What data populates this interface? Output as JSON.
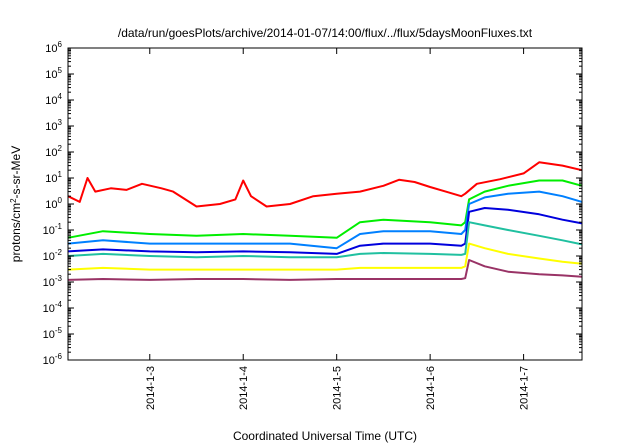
{
  "chart_data": {
    "type": "line",
    "title": "/data/run/goesPlots/archive/2014-01-07/14:00/flux/../flux/5daysMoonFluxes.txt",
    "xlabel": "Coordinated Universal Time (UTC)",
    "ylabel": {
      "pre": "protons/cm",
      "sup": "2",
      "post": "-s-sr-MeV"
    },
    "y_scale": "log",
    "ylim": [
      1e-06,
      1000000.0
    ],
    "y_ticks": [
      {
        "value": 1e-06,
        "base": "10",
        "exp": "-6"
      },
      {
        "value": 1e-05,
        "base": "10",
        "exp": "-5"
      },
      {
        "value": 0.0001,
        "base": "10",
        "exp": "-4"
      },
      {
        "value": 0.001,
        "base": "10",
        "exp": "-3"
      },
      {
        "value": 0.01,
        "base": "10",
        "exp": "-2"
      },
      {
        "value": 0.1,
        "base": "10",
        "exp": "-1"
      },
      {
        "value": 1,
        "base": "10",
        "exp": "0"
      },
      {
        "value": 10,
        "base": "10",
        "exp": "1"
      },
      {
        "value": 100,
        "base": "10",
        "exp": "2"
      },
      {
        "value": 1000,
        "base": "10",
        "exp": "3"
      },
      {
        "value": 10000,
        "base": "10",
        "exp": "4"
      },
      {
        "value": 100000,
        "base": "10",
        "exp": "5"
      },
      {
        "value": 1000000,
        "base": "10",
        "exp": "6"
      }
    ],
    "xlim": [
      "2014-01-02T03:00",
      "2014-01-07T15:00"
    ],
    "x_ticks": [
      "2014-1-3",
      "2014-1-4",
      "2014-1-5",
      "2014-1-6",
      "2014-1-7"
    ],
    "grid": false,
    "series": [
      {
        "color": "#ff0000",
        "points": [
          [
            "2014-01-02T03:00",
            2.0
          ],
          [
            "2014-01-02T06:00",
            1.2
          ],
          [
            "2014-01-02T08:00",
            10.0
          ],
          [
            "2014-01-02T10:00",
            3.0
          ],
          [
            "2014-01-02T14:00",
            4.0
          ],
          [
            "2014-01-02T18:00",
            3.5
          ],
          [
            "2014-01-02T22:00",
            6.0
          ],
          [
            "2014-01-03T03:00",
            4.0
          ],
          [
            "2014-01-03T06:00",
            3.0
          ],
          [
            "2014-01-03T12:00",
            0.8
          ],
          [
            "2014-01-03T18:00",
            1.0
          ],
          [
            "2014-01-03T22:00",
            1.5
          ],
          [
            "2014-01-04T00:00",
            8.0
          ],
          [
            "2014-01-04T02:00",
            2.0
          ],
          [
            "2014-01-04T06:00",
            0.8
          ],
          [
            "2014-01-04T12:00",
            1.0
          ],
          [
            "2014-01-04T18:00",
            2.0
          ],
          [
            "2014-01-05T00:00",
            2.5
          ],
          [
            "2014-01-05T06:00",
            3.0
          ],
          [
            "2014-01-05T12:00",
            5.0
          ],
          [
            "2014-01-05T16:00",
            8.5
          ],
          [
            "2014-01-05T20:00",
            7.0
          ],
          [
            "2014-01-06T00:00",
            4.5
          ],
          [
            "2014-01-06T04:00",
            3.0
          ],
          [
            "2014-01-06T08:00",
            2.0
          ],
          [
            "2014-01-06T09:00",
            2.5
          ],
          [
            "2014-01-06T12:00",
            6.0
          ],
          [
            "2014-01-06T18:00",
            9.0
          ],
          [
            "2014-01-07T00:00",
            15.0
          ],
          [
            "2014-01-07T04:00",
            40.0
          ],
          [
            "2014-01-07T10:00",
            30.0
          ],
          [
            "2014-01-07T15:00",
            20.0
          ]
        ]
      },
      {
        "color": "#00ee00",
        "points": [
          [
            "2014-01-02T03:00",
            0.05
          ],
          [
            "2014-01-02T12:00",
            0.09
          ],
          [
            "2014-01-03T00:00",
            0.07
          ],
          [
            "2014-01-03T12:00",
            0.06
          ],
          [
            "2014-01-04T00:00",
            0.07
          ],
          [
            "2014-01-04T12:00",
            0.06
          ],
          [
            "2014-01-05T00:00",
            0.05
          ],
          [
            "2014-01-05T06:00",
            0.2
          ],
          [
            "2014-01-05T12:00",
            0.25
          ],
          [
            "2014-01-06T00:00",
            0.2
          ],
          [
            "2014-01-06T08:00",
            0.15
          ],
          [
            "2014-01-06T09:00",
            0.2
          ],
          [
            "2014-01-06T10:00",
            1.5
          ],
          [
            "2014-01-06T14:00",
            3.0
          ],
          [
            "2014-01-06T20:00",
            5.0
          ],
          [
            "2014-01-07T04:00",
            8.0
          ],
          [
            "2014-01-07T10:00",
            8.0
          ],
          [
            "2014-01-07T15:00",
            5.0
          ]
        ]
      },
      {
        "color": "#0080ff",
        "points": [
          [
            "2014-01-02T03:00",
            0.03
          ],
          [
            "2014-01-02T12:00",
            0.04
          ],
          [
            "2014-01-03T00:00",
            0.03
          ],
          [
            "2014-01-03T12:00",
            0.03
          ],
          [
            "2014-01-04T00:00",
            0.03
          ],
          [
            "2014-01-04T12:00",
            0.03
          ],
          [
            "2014-01-05T00:00",
            0.02
          ],
          [
            "2014-01-05T06:00",
            0.07
          ],
          [
            "2014-01-05T12:00",
            0.09
          ],
          [
            "2014-01-06T00:00",
            0.09
          ],
          [
            "2014-01-06T08:00",
            0.07
          ],
          [
            "2014-01-06T09:00",
            0.1
          ],
          [
            "2014-01-06T10:00",
            1.0
          ],
          [
            "2014-01-06T14:00",
            1.8
          ],
          [
            "2014-01-06T20:00",
            2.5
          ],
          [
            "2014-01-07T04:00",
            3.0
          ],
          [
            "2014-01-07T10:00",
            2.0
          ],
          [
            "2014-01-07T15:00",
            1.2
          ]
        ]
      },
      {
        "color": "#0000dd",
        "points": [
          [
            "2014-01-02T03:00",
            0.015
          ],
          [
            "2014-01-02T12:00",
            0.018
          ],
          [
            "2014-01-03T00:00",
            0.015
          ],
          [
            "2014-01-03T12:00",
            0.014
          ],
          [
            "2014-01-04T00:00",
            0.015
          ],
          [
            "2014-01-04T12:00",
            0.014
          ],
          [
            "2014-01-05T00:00",
            0.012
          ],
          [
            "2014-01-05T06:00",
            0.025
          ],
          [
            "2014-01-05T12:00",
            0.03
          ],
          [
            "2014-01-06T00:00",
            0.03
          ],
          [
            "2014-01-06T08:00",
            0.025
          ],
          [
            "2014-01-06T09:00",
            0.03
          ],
          [
            "2014-01-06T10:00",
            0.5
          ],
          [
            "2014-01-06T14:00",
            0.7
          ],
          [
            "2014-01-06T20:00",
            0.6
          ],
          [
            "2014-01-07T04:00",
            0.4
          ],
          [
            "2014-01-07T10:00",
            0.25
          ],
          [
            "2014-01-07T15:00",
            0.18
          ]
        ]
      },
      {
        "color": "#20c0a0",
        "points": [
          [
            "2014-01-02T03:00",
            0.01
          ],
          [
            "2014-01-02T12:00",
            0.012
          ],
          [
            "2014-01-03T00:00",
            0.01
          ],
          [
            "2014-01-03T12:00",
            0.009
          ],
          [
            "2014-01-04T00:00",
            0.01
          ],
          [
            "2014-01-04T12:00",
            0.009
          ],
          [
            "2014-01-05T00:00",
            0.009
          ],
          [
            "2014-01-05T06:00",
            0.012
          ],
          [
            "2014-01-05T12:00",
            0.013
          ],
          [
            "2014-01-06T00:00",
            0.012
          ],
          [
            "2014-01-06T08:00",
            0.011
          ],
          [
            "2014-01-06T09:00",
            0.012
          ],
          [
            "2014-01-06T10:00",
            0.2
          ],
          [
            "2014-01-06T14:00",
            0.15
          ],
          [
            "2014-01-06T20:00",
            0.1
          ],
          [
            "2014-01-07T04:00",
            0.06
          ],
          [
            "2014-01-07T10:00",
            0.04
          ],
          [
            "2014-01-07T15:00",
            0.028
          ]
        ]
      },
      {
        "color": "#ffff00",
        "points": [
          [
            "2014-01-02T03:00",
            0.003
          ],
          [
            "2014-01-02T12:00",
            0.0035
          ],
          [
            "2014-01-03T00:00",
            0.003
          ],
          [
            "2014-01-03T12:00",
            0.003
          ],
          [
            "2014-01-04T00:00",
            0.003
          ],
          [
            "2014-01-04T12:00",
            0.003
          ],
          [
            "2014-01-05T00:00",
            0.003
          ],
          [
            "2014-01-05T06:00",
            0.0035
          ],
          [
            "2014-01-05T12:00",
            0.0035
          ],
          [
            "2014-01-06T00:00",
            0.0035
          ],
          [
            "2014-01-06T08:00",
            0.0035
          ],
          [
            "2014-01-06T09:00",
            0.004
          ],
          [
            "2014-01-06T10:00",
            0.03
          ],
          [
            "2014-01-06T14:00",
            0.02
          ],
          [
            "2014-01-06T20:00",
            0.012
          ],
          [
            "2014-01-07T04:00",
            0.008
          ],
          [
            "2014-01-07T10:00",
            0.006
          ],
          [
            "2014-01-07T15:00",
            0.005
          ]
        ]
      },
      {
        "color": "#993366",
        "points": [
          [
            "2014-01-02T03:00",
            0.0012
          ],
          [
            "2014-01-02T12:00",
            0.0013
          ],
          [
            "2014-01-03T00:00",
            0.0012
          ],
          [
            "2014-01-03T12:00",
            0.0013
          ],
          [
            "2014-01-04T00:00",
            0.0013
          ],
          [
            "2014-01-04T12:00",
            0.0012
          ],
          [
            "2014-01-05T00:00",
            0.0013
          ],
          [
            "2014-01-05T06:00",
            0.0013
          ],
          [
            "2014-01-05T12:00",
            0.0013
          ],
          [
            "2014-01-06T00:00",
            0.0013
          ],
          [
            "2014-01-06T08:00",
            0.0013
          ],
          [
            "2014-01-06T09:00",
            0.0014
          ],
          [
            "2014-01-06T10:00",
            0.007
          ],
          [
            "2014-01-06T14:00",
            0.004
          ],
          [
            "2014-01-06T20:00",
            0.0025
          ],
          [
            "2014-01-07T04:00",
            0.002
          ],
          [
            "2014-01-07T10:00",
            0.0018
          ],
          [
            "2014-01-07T15:00",
            0.0016
          ]
        ]
      }
    ]
  }
}
